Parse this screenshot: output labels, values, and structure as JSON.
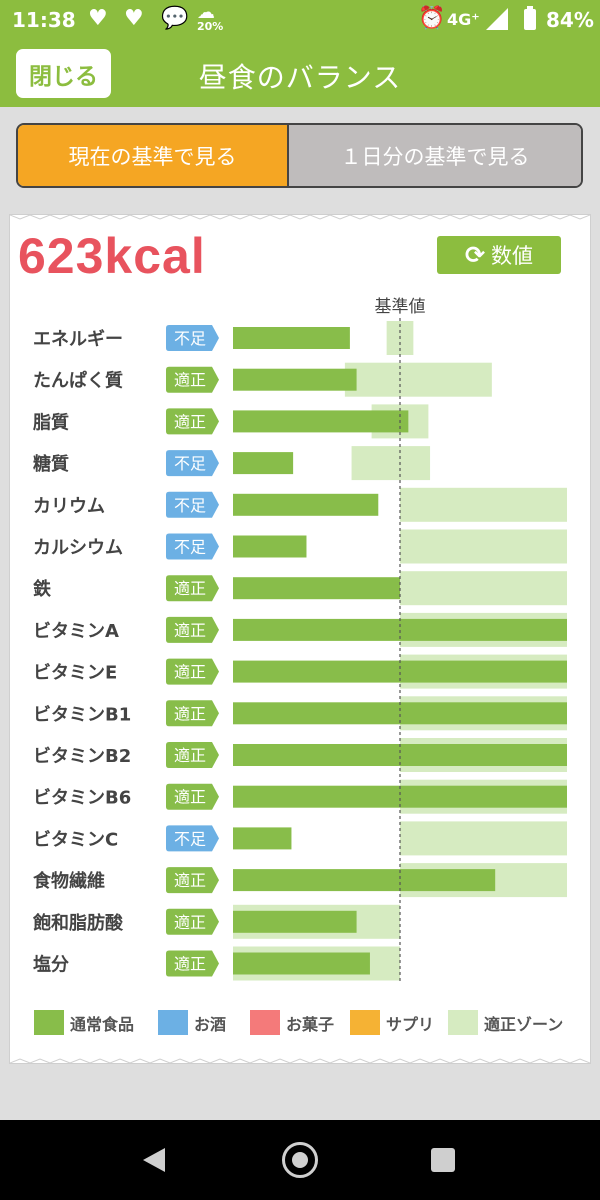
{
  "status_bar": {
    "time": "11:38",
    "weather_percent": "20%",
    "network": "4G⁺",
    "battery": "84%"
  },
  "header": {
    "close_label": "閉じる",
    "title": "昼食のバランス"
  },
  "segments": {
    "current_label": "現在の基準で見る",
    "daily_label": "１日分の基準で見る",
    "active": "current"
  },
  "card": {
    "kcal": "623kcal",
    "value_button_label": "数値"
  },
  "chart_data": {
    "type": "bar",
    "orientation": "horizontal",
    "reference_label": "基準値",
    "scale_note": "1.0 = reference value (dashed line); bars cap at the right edge of the chart",
    "xlim": [
      0,
      2.0
    ],
    "rows": [
      {
        "name": "エネルギー",
        "status": "不足",
        "value": 0.7,
        "zone": [
          0.92,
          1.08
        ]
      },
      {
        "name": "たんぱく質",
        "status": "適正",
        "value": 0.74,
        "zone": [
          0.67,
          1.55
        ]
      },
      {
        "name": "脂質",
        "status": "適正",
        "value": 1.05,
        "zone": [
          0.83,
          1.17
        ]
      },
      {
        "name": "糖質",
        "status": "不足",
        "value": 0.36,
        "zone": [
          0.71,
          1.18
        ]
      },
      {
        "name": "カリウム",
        "status": "不足",
        "value": 0.87,
        "zone": [
          1.0,
          2.0
        ]
      },
      {
        "name": "カルシウム",
        "status": "不足",
        "value": 0.44,
        "zone": [
          1.0,
          2.0
        ]
      },
      {
        "name": "鉄",
        "status": "適正",
        "value": 1.0,
        "zone": [
          1.0,
          2.0
        ]
      },
      {
        "name": "ビタミンA",
        "status": "適正",
        "value": 2.0,
        "zone": [
          1.0,
          2.0
        ]
      },
      {
        "name": "ビタミンE",
        "status": "適正",
        "value": 2.0,
        "zone": [
          1.0,
          2.0
        ]
      },
      {
        "name": "ビタミンB1",
        "status": "適正",
        "value": 2.0,
        "zone": [
          1.0,
          2.0
        ]
      },
      {
        "name": "ビタミンB2",
        "status": "適正",
        "value": 2.0,
        "zone": [
          1.0,
          2.0
        ]
      },
      {
        "name": "ビタミンB6",
        "status": "適正",
        "value": 2.0,
        "zone": [
          1.0,
          2.0
        ]
      },
      {
        "name": "ビタミンC",
        "status": "不足",
        "value": 0.35,
        "zone": [
          1.0,
          2.0
        ]
      },
      {
        "name": "食物繊維",
        "status": "適正",
        "value": 1.57,
        "zone": [
          1.0,
          2.0
        ]
      },
      {
        "name": "飽和脂肪酸",
        "status": "適正",
        "value": 0.74,
        "zone": [
          0.0,
          1.0
        ]
      },
      {
        "name": "塩分",
        "status": "適正",
        "value": 0.82,
        "zone": [
          0.0,
          1.0
        ]
      }
    ],
    "legend": [
      "通常食品",
      "お酒",
      "お菓子",
      "サプリ",
      "適正ゾーン"
    ]
  },
  "colors": {
    "header": "#8cbd3f",
    "bar": "#88bd4a",
    "zone": "#d6ebc1",
    "status_low": "#6cb0e4",
    "status_ok": "#88bd4a",
    "alcohol": "#6cb0e4",
    "snacks": "#f47a7a",
    "supplement": "#f5b234",
    "kcal": "#e8535e",
    "segment_active": "#f5a623"
  }
}
